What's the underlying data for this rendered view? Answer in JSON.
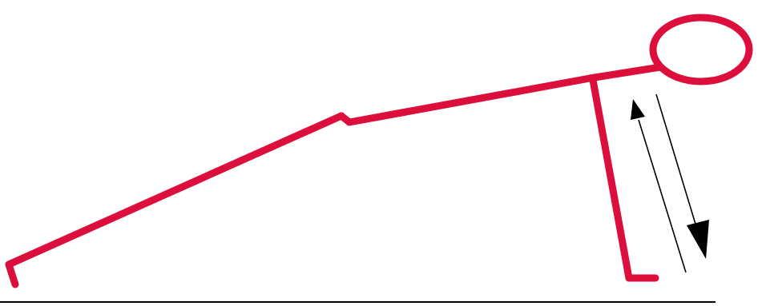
{
  "figure": {
    "subject": "push-up-figure",
    "colors": {
      "figure": "#dc0f3c",
      "arrows": "#000000",
      "ground": "#000000",
      "background": "#ffffff"
    },
    "icons": {
      "arrow_up": "arrow-up-icon",
      "arrow_down": "arrow-down-icon"
    }
  }
}
